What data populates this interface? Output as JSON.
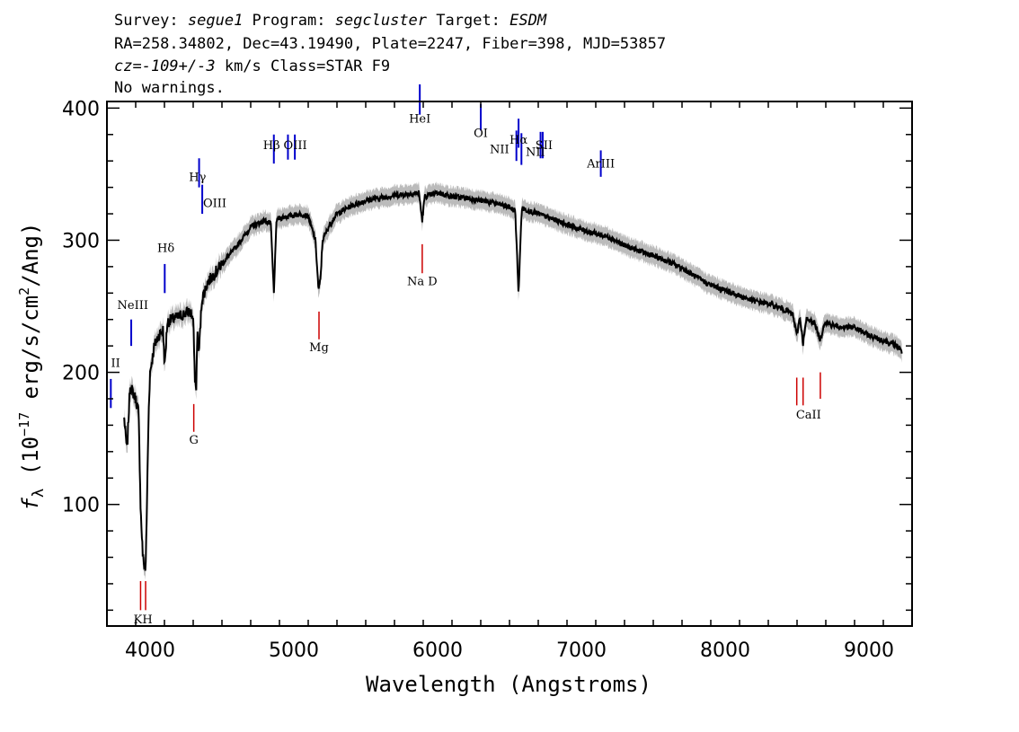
{
  "header": {
    "line1": [
      {
        "t": "Survey: ",
        "it": false
      },
      {
        "t": "segue1",
        "it": true
      },
      {
        "t": " Program: ",
        "it": false
      },
      {
        "t": "segcluster",
        "it": true
      },
      {
        "t": " Target: ",
        "it": false
      },
      {
        "t": "ESDM",
        "it": true
      }
    ],
    "line2": "RA=258.34802, Dec=43.19490, Plate=2247, Fiber=398, MJD=53857",
    "line3": [
      {
        "t": "cz=-109+/-3",
        "it": true
      },
      {
        "t": " km/s Class=STAR F9",
        "it": false
      }
    ],
    "line4": "No warnings."
  },
  "chart_data": {
    "type": "line",
    "xlabel": "Wavelength (Angstroms)",
    "ylabel": "fλ (10^-17 erg/s/cm^2/Ang)",
    "ylabel_parts": {
      "f": "f",
      "sub": "λ",
      "pre": " (10",
      "exp1": "−17",
      "mid": " erg/s/cm",
      "exp2": "2",
      "post": "/Ang)"
    },
    "xlim": [
      3700,
      9300
    ],
    "ylim": [
      8,
      405
    ],
    "xticks": [
      4000,
      5000,
      6000,
      7000,
      8000,
      9000
    ],
    "yticks": [
      100,
      200,
      300,
      400
    ],
    "colors": {
      "spectrum": "#000000",
      "error_band": "#bbbbbb",
      "emission": "#0000cc",
      "absorption": "#cc0000"
    },
    "spectrum_anchor_points": [
      [
        3820,
        165
      ],
      [
        3840,
        140
      ],
      [
        3860,
        190
      ],
      [
        3880,
        185
      ],
      [
        3900,
        180
      ],
      [
        3920,
        170
      ],
      [
        3935,
        95
      ],
      [
        3950,
        60
      ],
      [
        3968,
        50
      ],
      [
        3975,
        80
      ],
      [
        3990,
        170
      ],
      [
        4000,
        200
      ],
      [
        4030,
        220
      ],
      [
        4060,
        228
      ],
      [
        4090,
        232
      ],
      [
        4102,
        205
      ],
      [
        4120,
        238
      ],
      [
        4150,
        240
      ],
      [
        4200,
        242
      ],
      [
        4250,
        245
      ],
      [
        4280,
        246
      ],
      [
        4300,
        240
      ],
      [
        4310,
        200
      ],
      [
        4320,
        185
      ],
      [
        4330,
        230
      ],
      [
        4340,
        215
      ],
      [
        4360,
        255
      ],
      [
        4400,
        268
      ],
      [
        4500,
        282
      ],
      [
        4600,
        295
      ],
      [
        4700,
        310
      ],
      [
        4800,
        315
      ],
      [
        4840,
        312
      ],
      [
        4861,
        260
      ],
      [
        4880,
        316
      ],
      [
        4950,
        318
      ],
      [
        5050,
        320
      ],
      [
        5100,
        318
      ],
      [
        5150,
        300
      ],
      [
        5172,
        262
      ],
      [
        5185,
        270
      ],
      [
        5200,
        300
      ],
      [
        5250,
        312
      ],
      [
        5300,
        320
      ],
      [
        5400,
        326
      ],
      [
        5500,
        330
      ],
      [
        5600,
        332
      ],
      [
        5700,
        334
      ],
      [
        5800,
        335
      ],
      [
        5870,
        336
      ],
      [
        5893,
        315
      ],
      [
        5910,
        333
      ],
      [
        6000,
        336
      ],
      [
        6100,
        333
      ],
      [
        6200,
        332
      ],
      [
        6300,
        330
      ],
      [
        6400,
        328
      ],
      [
        6500,
        325
      ],
      [
        6540,
        322
      ],
      [
        6563,
        260
      ],
      [
        6585,
        324
      ],
      [
        6700,
        320
      ],
      [
        6800,
        316
      ],
      [
        6900,
        312
      ],
      [
        7000,
        308
      ],
      [
        7100,
        305
      ],
      [
        7200,
        302
      ],
      [
        7300,
        296
      ],
      [
        7400,
        292
      ],
      [
        7500,
        288
      ],
      [
        7600,
        284
      ],
      [
        7700,
        279
      ],
      [
        7800,
        272
      ],
      [
        7900,
        266
      ],
      [
        8000,
        262
      ],
      [
        8100,
        258
      ],
      [
        8200,
        254
      ],
      [
        8300,
        252
      ],
      [
        8400,
        248
      ],
      [
        8470,
        244
      ],
      [
        8498,
        228
      ],
      [
        8520,
        242
      ],
      [
        8542,
        222
      ],
      [
        8565,
        240
      ],
      [
        8620,
        238
      ],
      [
        8662,
        224
      ],
      [
        8690,
        238
      ],
      [
        8800,
        234
      ],
      [
        8900,
        234
      ],
      [
        9000,
        228
      ],
      [
        9100,
        224
      ],
      [
        9200,
        220
      ],
      [
        9230,
        215
      ]
    ],
    "emission_lines": [
      {
        "name": "OII",
        "x": 3727,
        "y1": 173,
        "y2": 195,
        "label_y": 200
      },
      {
        "name": "NeIII",
        "x": 3869,
        "y1": 220,
        "y2": 240,
        "label_y": 245
      },
      {
        "name": "Hδ",
        "x": 4102,
        "y1": 260,
        "y2": 282,
        "label_y": 287
      },
      {
        "name": "Hγ",
        "x": 4341,
        "y1": 340,
        "y2": 362,
        "label_y": 367
      },
      {
        "name": "OIII",
        "x": 4363,
        "y1": 320,
        "y2": 342,
        "label_y": 347
      },
      {
        "name": "Hβ",
        "x": 4861,
        "y1": 358,
        "y2": 380,
        "label_y": 385
      },
      {
        "name": "OIII",
        "x": 4959,
        "y1": 361,
        "y2": 380,
        "label_y": 385
      },
      {
        "name": "OIII",
        "x": 5007,
        "y1": 361,
        "y2": 380,
        "label_y": 385
      },
      {
        "name": "HeI",
        "x": 5876,
        "y1": 395,
        "y2": 418,
        "label_y": 423
      },
      {
        "name": "OI",
        "x": 6300,
        "y1": 383,
        "y2": 403,
        "label_y": 408
      },
      {
        "name": "NII",
        "x": 6548,
        "y1": 360,
        "y2": 383,
        "label_y": 388
      },
      {
        "name": "Hα",
        "x": 6563,
        "y1": 370,
        "y2": 392,
        "label_y": 397
      },
      {
        "name": "NII",
        "x": 6583,
        "y1": 357,
        "y2": 381,
        "label_y": 386
      },
      {
        "name": "SII",
        "x": 6716,
        "y1": 362,
        "y2": 382,
        "label_y": 387
      },
      {
        "name": "SII",
        "x": 6731,
        "y1": 362,
        "y2": 382,
        "label_y": 387
      },
      {
        "name": "ArIII",
        "x": 7135,
        "y1": 348,
        "y2": 368,
        "label_y": 373
      }
    ],
    "emission_label_positions": [
      {
        "text": "II",
        "x": 3760,
        "y": 204
      },
      {
        "text": "NeIII",
        "x": 3880,
        "y": 248
      },
      {
        "text": "Hδ",
        "x": 4110,
        "y": 291
      },
      {
        "text": "Hγ",
        "x": 4330,
        "y": 345
      },
      {
        "text": "OIII",
        "x": 4450,
        "y": 325
      },
      {
        "text": "Hβ",
        "x": 4845,
        "y": 369
      },
      {
        "text": "OIII",
        "x": 5010,
        "y": 369
      },
      {
        "text": "HeI",
        "x": 5876,
        "y": 389
      },
      {
        "text": "OI",
        "x": 6300,
        "y": 378
      },
      {
        "text": "NII",
        "x": 6430,
        "y": 366
      },
      {
        "text": "Hα",
        "x": 6563,
        "y": 373
      },
      {
        "text": "NII",
        "x": 6680,
        "y": 364
      },
      {
        "text": "SII",
        "x": 6740,
        "y": 369
      },
      {
        "text": "ArIII",
        "x": 7135,
        "y": 355
      }
    ],
    "absorption_lines": [
      {
        "name": "K",
        "x": 3934,
        "y1": 20,
        "y2": 42
      },
      {
        "name": "H",
        "x": 3969,
        "y1": 20,
        "y2": 42
      },
      {
        "name": "G",
        "x": 4304,
        "y1": 155,
        "y2": 176
      },
      {
        "name": "Mg",
        "x": 5175,
        "y1": 225,
        "y2": 246
      },
      {
        "name": "Na D",
        "x": 5893,
        "y1": 275,
        "y2": 297
      },
      {
        "name": "CaII",
        "x": 8498,
        "y1": 175,
        "y2": 196
      },
      {
        "name": "CaII",
        "x": 8542,
        "y1": 175,
        "y2": 196
      },
      {
        "name": "CaII",
        "x": 8662,
        "y1": 180,
        "y2": 200
      }
    ],
    "absorption_label_positions": [
      {
        "text": "KH",
        "x": 3951,
        "y": 10
      },
      {
        "text": "G",
        "x": 4304,
        "y": 146
      },
      {
        "text": "Mg",
        "x": 5175,
        "y": 216
      },
      {
        "text": "Na D",
        "x": 5893,
        "y": 266
      },
      {
        "text": "CaII",
        "x": 8580,
        "y": 165
      }
    ]
  }
}
